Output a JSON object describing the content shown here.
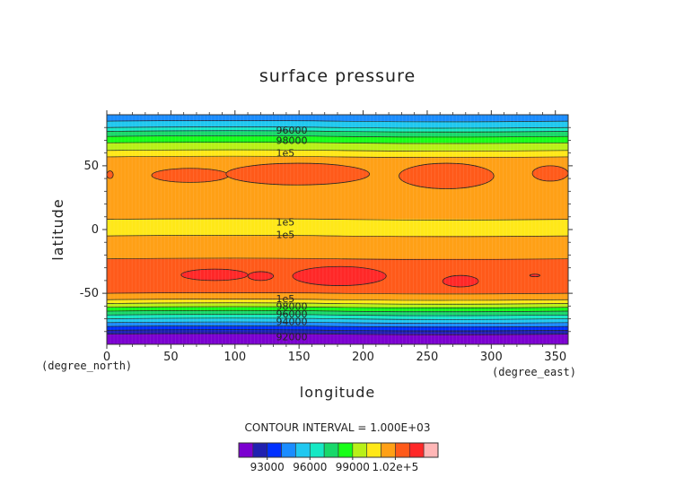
{
  "chart_data": {
    "type": "heatmap",
    "title": "surface pressure",
    "xlabel": "longitude",
    "ylabel": "latitude",
    "x_unit_label": "(degree_east)",
    "y_unit_label": "(degree_north)",
    "xlim": [
      0,
      360
    ],
    "ylim": [
      -90,
      90
    ],
    "x_ticks": [
      0,
      50,
      100,
      150,
      200,
      250,
      300,
      350
    ],
    "y_ticks": [
      -50,
      0,
      50
    ],
    "contour_interval_text": "CONTOUR INTERVAL = 1.000E+03",
    "contour_labels": [
      {
        "text": "96000",
        "lon": 132,
        "lat": 78
      },
      {
        "text": "98000",
        "lon": 132,
        "lat": 70
      },
      {
        "text": "1e5",
        "lon": 132,
        "lat": 60
      },
      {
        "text": "1e5",
        "lon": 132,
        "lat": 6
      },
      {
        "text": "1e5",
        "lon": 132,
        "lat": -4
      },
      {
        "text": "1e5",
        "lon": 132,
        "lat": -54
      },
      {
        "text": "98000",
        "lon": 132,
        "lat": -60
      },
      {
        "text": "96000",
        "lon": 132,
        "lat": -66
      },
      {
        "text": "94000",
        "lon": 132,
        "lat": -72
      },
      {
        "text": "92000",
        "lon": 132,
        "lat": -84
      }
    ],
    "zonal_mean_bands": [
      {
        "lat_from": 90,
        "lat_to": 85,
        "value": 94500
      },
      {
        "lat_from": 85,
        "lat_to": 80,
        "value": 95500
      },
      {
        "lat_from": 80,
        "lat_to": 77,
        "value": 96500
      },
      {
        "lat_from": 77,
        "lat_to": 73,
        "value": 97500
      },
      {
        "lat_from": 73,
        "lat_to": 68,
        "value": 98500
      },
      {
        "lat_from": 68,
        "lat_to": 62,
        "value": 99500
      },
      {
        "lat_from": 62,
        "lat_to": 57,
        "value": 100500
      },
      {
        "lat_from": 57,
        "lat_to": 8,
        "value": 101500
      },
      {
        "lat_from": 8,
        "lat_to": -5,
        "value": 100500
      },
      {
        "lat_from": -5,
        "lat_to": -23,
        "value": 101500
      },
      {
        "lat_from": -23,
        "lat_to": -50,
        "value": 102500
      },
      {
        "lat_from": -50,
        "lat_to": -55,
        "value": 101500
      },
      {
        "lat_from": -55,
        "lat_to": -58,
        "value": 100500
      },
      {
        "lat_from": -58,
        "lat_to": -61,
        "value": 99500
      },
      {
        "lat_from": -61,
        "lat_to": -64,
        "value": 98500
      },
      {
        "lat_from": -64,
        "lat_to": -67,
        "value": 97500
      },
      {
        "lat_from": -67,
        "lat_to": -70,
        "value": 96500
      },
      {
        "lat_from": -70,
        "lat_to": -73,
        "value": 95500
      },
      {
        "lat_from": -73,
        "lat_to": -76,
        "value": 94500
      },
      {
        "lat_from": -76,
        "lat_to": -79,
        "value": 93500
      },
      {
        "lat_from": -79,
        "lat_to": -82,
        "value": 92500
      },
      {
        "lat_from": -82,
        "lat_to": -90,
        "value": 91500
      }
    ],
    "cells": [
      {
        "lon_from": 35,
        "lon_to": 95,
        "lat_from": 48,
        "lat_to": 37,
        "value": 102500
      },
      {
        "lon_from": 93,
        "lon_to": 205,
        "lat_from": 52,
        "lat_to": 35,
        "value": 102500
      },
      {
        "lon_from": 228,
        "lon_to": 302,
        "lat_from": 52,
        "lat_to": 32,
        "value": 102500
      },
      {
        "lon_from": 332,
        "lon_to": 360,
        "lat_from": 50,
        "lat_to": 38,
        "value": 102500
      },
      {
        "lon_from": 0,
        "lon_to": 5,
        "lat_from": 46,
        "lat_to": 40,
        "value": 102500
      },
      {
        "lon_from": 58,
        "lon_to": 110,
        "lat_from": -31,
        "lat_to": -40,
        "value": 103500
      },
      {
        "lon_from": 110,
        "lon_to": 130,
        "lat_from": -33,
        "lat_to": -40,
        "value": 103500
      },
      {
        "lon_from": 145,
        "lon_to": 218,
        "lat_from": -29,
        "lat_to": -44,
        "value": 103500
      },
      {
        "lon_from": 262,
        "lon_to": 290,
        "lat_from": -36,
        "lat_to": -45,
        "value": 103500
      },
      {
        "lon_from": 330,
        "lon_to": 338,
        "lat_from": -35,
        "lat_to": -37,
        "value": 103500
      }
    ],
    "colorbar": {
      "levels": [
        91000,
        92000,
        93000,
        94000,
        95000,
        96000,
        97000,
        98000,
        99000,
        100000,
        101000,
        102000,
        103000,
        104000
      ],
      "colors": [
        "#7b00d0",
        "#2020b0",
        "#0030ff",
        "#1a8cff",
        "#20c8f0",
        "#16e8c4",
        "#18d86a",
        "#18ff18",
        "#b8f018",
        "#ffe818",
        "#ffa016",
        "#ff5a1a",
        "#ff2828",
        "#ffb6b6"
      ],
      "tick_labels": [
        {
          "text": "93000",
          "value": 93000
        },
        {
          "text": "96000",
          "value": 96000
        },
        {
          "text": "99000",
          "value": 99000
        },
        {
          "text": "1.02e+5",
          "value": 102000
        }
      ]
    },
    "grid": false,
    "legend": "bottom"
  }
}
